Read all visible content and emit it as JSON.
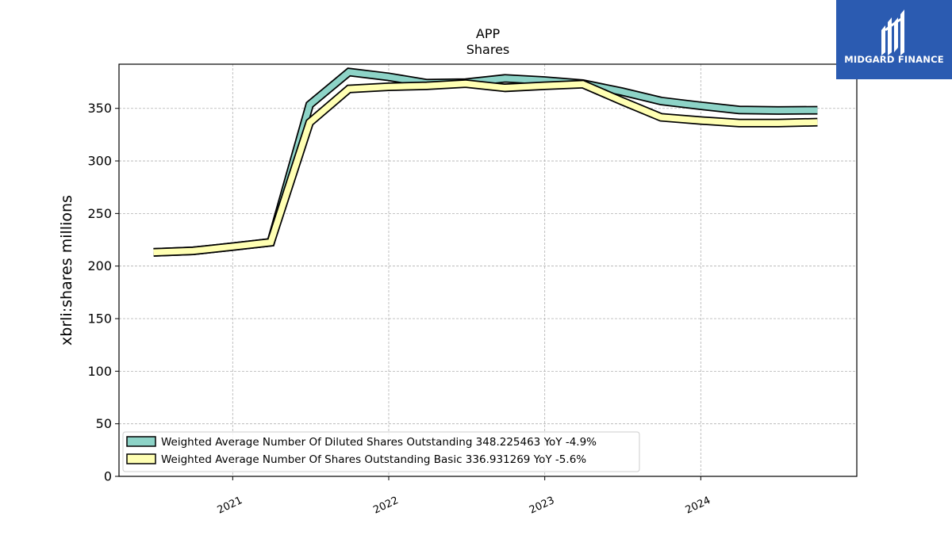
{
  "logo": {
    "text": "MIDGARD FINANCE",
    "background": "#2b5bb1"
  },
  "chart_data": {
    "type": "line",
    "title": "APP",
    "subtitle": "Shares",
    "xlabel": "",
    "ylabel": "xbrli:shares millions",
    "ylim": [
      0,
      392
    ],
    "yticks": [
      0,
      50,
      100,
      150,
      200,
      250,
      300,
      350
    ],
    "xlim": [
      "2020-04-10",
      "2024-12-31"
    ],
    "xticks": [
      {
        "date": "2021-01-01",
        "label": "2021"
      },
      {
        "date": "2022-01-01",
        "label": "2022"
      },
      {
        "date": "2023-01-01",
        "label": "2023"
      },
      {
        "date": "2024-01-01",
        "label": "2024"
      }
    ],
    "grid": true,
    "legend_position": "lower-left",
    "x": [
      "2020-06-30",
      "2020-09-30",
      "2020-12-31",
      "2021-03-31",
      "2021-06-30",
      "2021-09-30",
      "2021-12-31",
      "2022-03-31",
      "2022-06-30",
      "2022-09-30",
      "2022-12-31",
      "2023-03-31",
      "2023-06-30",
      "2023-09-30",
      "2023-12-31",
      "2024-03-31",
      "2024-06-30",
      "2024-09-30"
    ],
    "series": [
      {
        "name": "Weighted Average Number Of Diluted Shares Outstanding  348.225463 YoY -4.9%",
        "color": "#8dd3c7",
        "values": [
          213.0,
          214.5,
          218.5,
          222.6,
          353.5,
          384.5,
          380.0,
          374.0,
          374.5,
          378.5,
          376.5,
          373.5,
          366.0,
          357.0,
          352.5,
          348.5,
          348.0,
          348.2
        ]
      },
      {
        "name": "Weighted Average Number Of Shares Outstanding Basic  336.931269 YoY -5.6%",
        "color": "#ffffb3",
        "values": [
          213.0,
          214.5,
          218.5,
          222.6,
          336.5,
          368.5,
          370.5,
          371.5,
          373.5,
          369.5,
          371.5,
          373.0,
          357.0,
          341.5,
          338.5,
          336.0,
          336.0,
          336.9
        ]
      }
    ]
  }
}
